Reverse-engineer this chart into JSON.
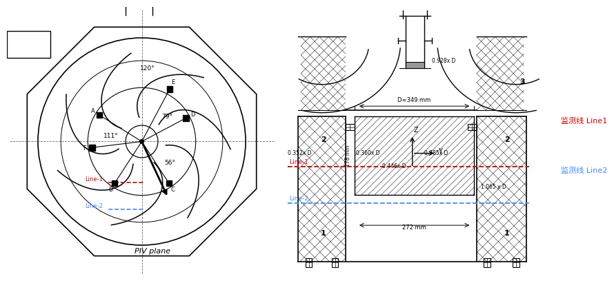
{
  "bg_color": "#ffffff",
  "line1_color": "#cc0000",
  "line2_color": "#4488ff",
  "label1_cn": "监测线 Line1",
  "label2_cn": "监测线 Line2",
  "label1_color": "#cc0000",
  "label2_color": "#4488ff",
  "piv_plane_text": "PIV plane",
  "dim_D": "D=349 mm",
  "dim_352": "0.352x D",
  "dim_360": "0.360x D",
  "dim_446": "0.446x D",
  "dim_785": "0.785x D",
  "dim_928": "0.928x D",
  "dim_1065": "1.065 x D",
  "dim_272": "272 mm",
  "dim_178": "178 mm",
  "line1_label": "Line-1",
  "line2_label": "Line-2",
  "axis_z": "Z",
  "axis_y": "Y",
  "num1": "1",
  "num2": "2",
  "num3": "3"
}
